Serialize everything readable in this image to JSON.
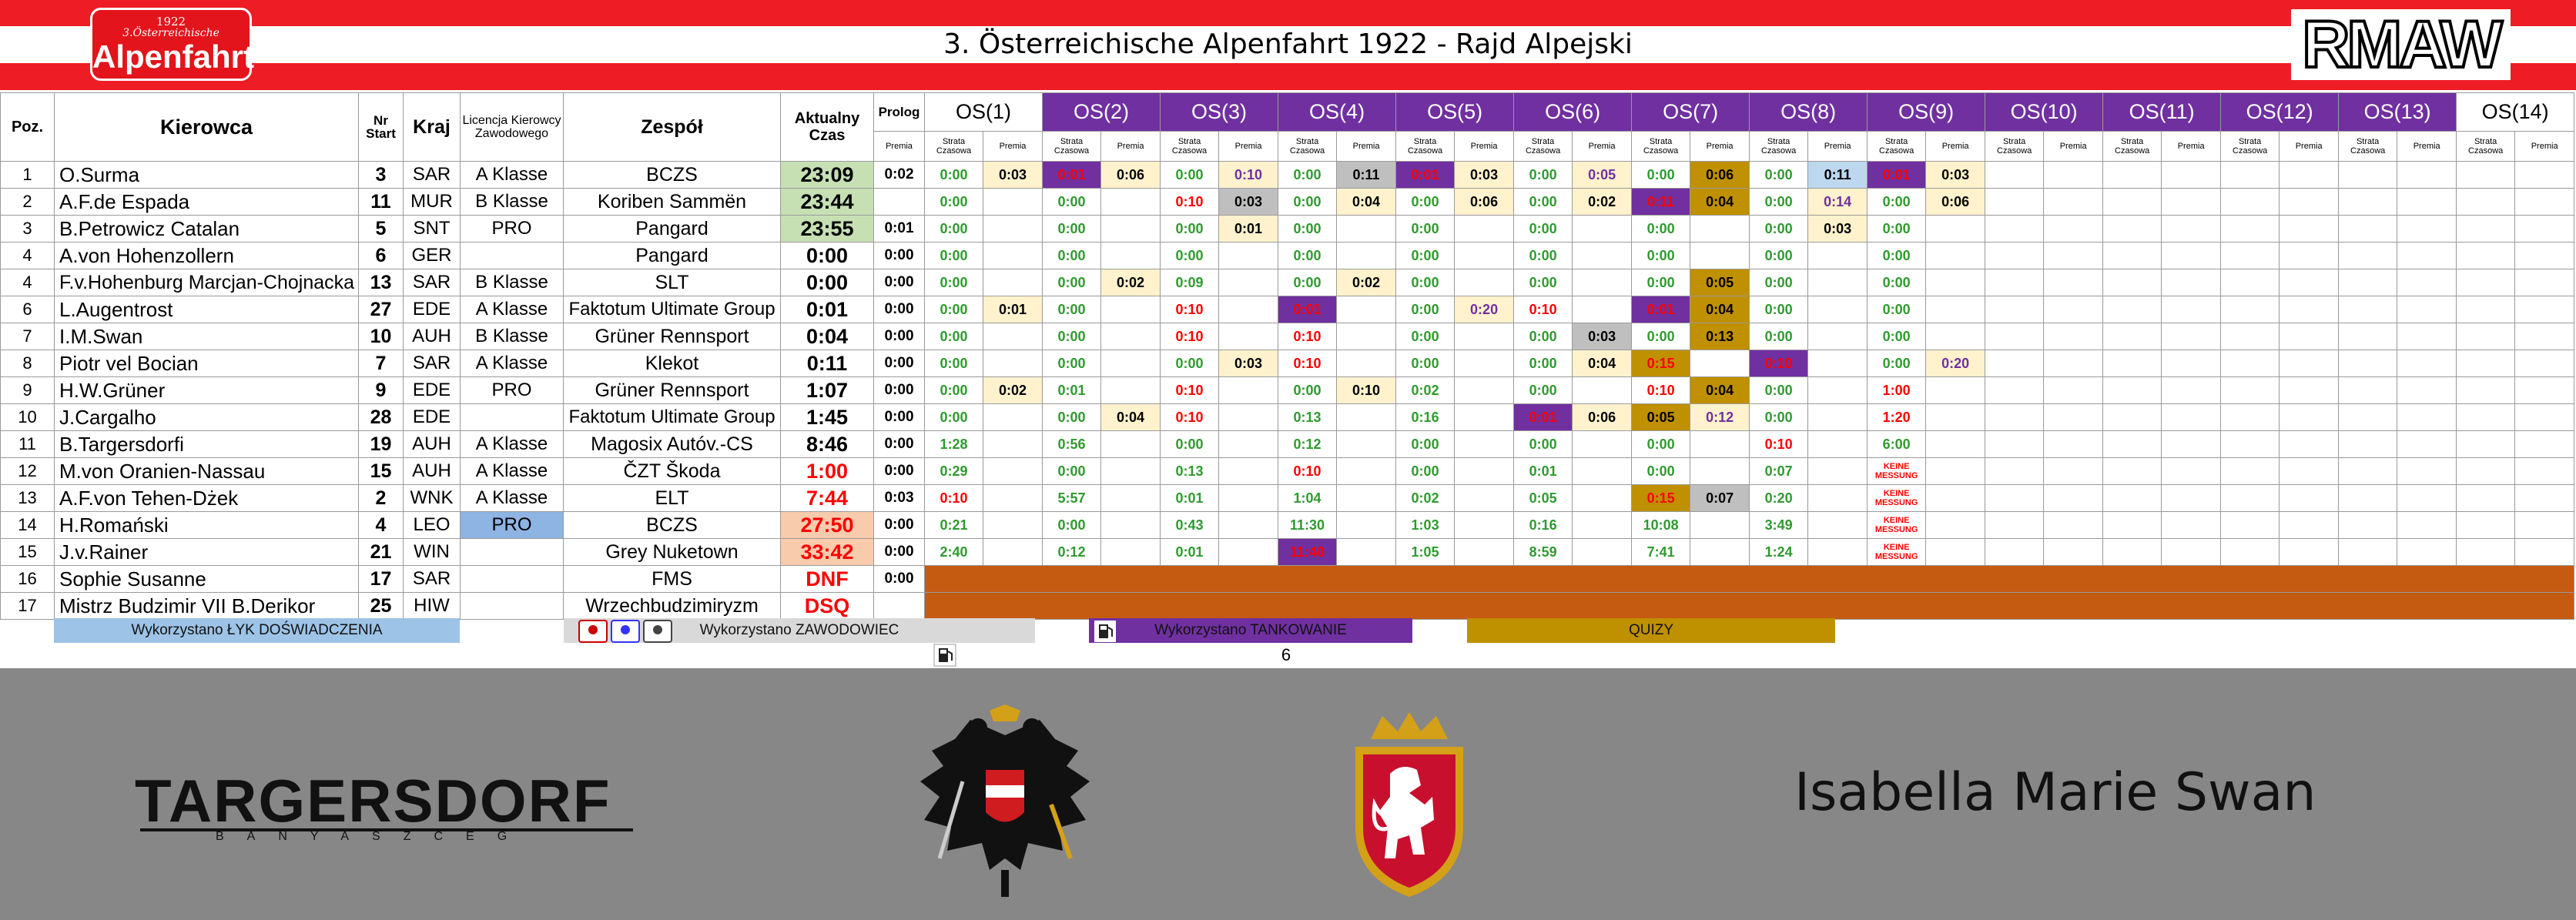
{
  "header": {
    "title": "3. Österreichische Alpenfahrt 1922 - Rajd Alpejski",
    "logo": {
      "year": "1922",
      "subtitle": "3.Österreichische",
      "name": "Alpenfahrt"
    },
    "brand": "RMAW"
  },
  "table": {
    "columns": [
      "Poz.",
      "Kierowca",
      "Nr Start",
      "Kraj",
      "Licencja Kierowcy Zawodowego",
      "Zespół",
      "Aktualny Czas",
      "Prolog"
    ],
    "stage_sub": [
      "Strata Czasowa",
      "Premia"
    ],
    "stages": [
      {
        "name": "OS(1)",
        "fill": "#ffffff",
        "color": "#000000"
      },
      {
        "name": "OS(2)",
        "fill": "#7030a0",
        "color": "#ffffff"
      },
      {
        "name": "OS(3)",
        "fill": "#7030a0",
        "color": "#ffffff"
      },
      {
        "name": "OS(4)",
        "fill": "#7030a0",
        "color": "#ffffff"
      },
      {
        "name": "OS(5)",
        "fill": "#7030a0",
        "color": "#ffffff"
      },
      {
        "name": "OS(6)",
        "fill": "#7030a0",
        "color": "#ffffff"
      },
      {
        "name": "OS(7)",
        "fill": "#7030a0",
        "color": "#ffffff"
      },
      {
        "name": "OS(8)",
        "fill": "#7030a0",
        "color": "#ffffff"
      },
      {
        "name": "OS(9)",
        "fill": "#7030a0",
        "color": "#ffffff"
      },
      {
        "name": "OS(10)",
        "fill": "#7030a0",
        "color": "#ffffff"
      },
      {
        "name": "OS(11)",
        "fill": "#7030a0",
        "color": "#ffffff"
      },
      {
        "name": "OS(12)",
        "fill": "#7030a0",
        "color": "#ffffff"
      },
      {
        "name": "OS(13)",
        "fill": "#7030a0",
        "color": "#ffffff"
      },
      {
        "name": "OS(14)",
        "fill": "#ffffff",
        "color": "#000000"
      }
    ],
    "rows": [
      {
        "pos": "1",
        "driver": "O.Surma",
        "nr": "3",
        "country": "SAR",
        "license": "A Klasse",
        "team": "BCZS",
        "time": {
          "text": "23:09",
          "fill": "#c6e0b4"
        },
        "prolog": "0:02",
        "stages": [
          [
            "0:00",
            "0:03"
          ],
          [
            {
              "text": "0:01",
              "color": "#ff0000",
              "fill": "#7030a0"
            },
            "0:06"
          ],
          [
            "0:00",
            {
              "text": "0:10",
              "color": "#7030a0"
            }
          ],
          [
            "0:00",
            {
              "text": "0:11",
              "fill": "#bfbfbf"
            }
          ],
          [
            {
              "text": "0:01",
              "color": "#ff0000",
              "fill": "#7030a0"
            },
            "0:03"
          ],
          [
            "0:00",
            {
              "text": "0:05",
              "color": "#7030a0"
            }
          ],
          [
            "0:00",
            {
              "text": "0:06",
              "fill": "#bf9000"
            }
          ],
          [
            "0:00",
            {
              "text": "0:11",
              "fill": "#bdd7ee"
            }
          ],
          [
            {
              "text": "0:01",
              "color": "#ff0000",
              "fill": "#7030a0"
            },
            "0:03"
          ]
        ]
      },
      {
        "pos": "2",
        "driver": "A.F.de Espada",
        "nr": "11",
        "country": "MUR",
        "license": "B Klasse",
        "team": "Koriben Sammën",
        "time": {
          "text": "23:44",
          "fill": "#c6e0b4"
        },
        "prolog": null,
        "stages": [
          [
            "0:00",
            null
          ],
          [
            "0:00",
            null
          ],
          [
            {
              "text": "0:10",
              "color": "#ff0000"
            },
            {
              "text": "0:03",
              "fill": "#bfbfbf"
            }
          ],
          [
            "0:00",
            "0:04"
          ],
          [
            "0:00",
            "0:06"
          ],
          [
            "0:00",
            "0:02"
          ],
          [
            {
              "text": "0:11",
              "color": "#ff0000",
              "fill": "#7030a0"
            },
            {
              "text": "0:04",
              "fill": "#bf9000"
            }
          ],
          [
            "0:00",
            {
              "text": "0:14",
              "color": "#7030a0"
            }
          ],
          [
            "0:00",
            "0:06"
          ]
        ]
      },
      {
        "pos": "3",
        "driver": "B.Petrowicz Catalan",
        "nr": "5",
        "country": "SNT",
        "license": "PRO",
        "team": "Pangard",
        "time": {
          "text": "23:55",
          "fill": "#c6e0b4"
        },
        "prolog": "0:01",
        "stages": [
          [
            "0:00",
            null
          ],
          [
            "0:00",
            null
          ],
          [
            "0:00",
            "0:01"
          ],
          [
            "0:00",
            null
          ],
          [
            "0:00",
            null
          ],
          [
            "0:00",
            null
          ],
          [
            "0:00",
            null
          ],
          [
            "0:00",
            "0:03"
          ],
          [
            "0:00",
            null
          ]
        ]
      },
      {
        "pos": "4",
        "driver": "A.von Hohenzollern",
        "nr": "6",
        "country": "GER",
        "license": null,
        "team": "Pangard",
        "time": "0:00",
        "prolog": "0:00",
        "stages": [
          [
            "0:00",
            null
          ],
          [
            "0:00",
            null
          ],
          [
            "0:00",
            null
          ],
          [
            "0:00",
            null
          ],
          [
            "0:00",
            null
          ],
          [
            "0:00",
            null
          ],
          [
            "0:00",
            null
          ],
          [
            "0:00",
            null
          ],
          [
            "0:00",
            null
          ]
        ]
      },
      {
        "pos": "4",
        "driver": "F.v.Hohenburg Marcjan-Chojnacka",
        "nr": "13",
        "country": "SAR",
        "license": "B Klasse",
        "team": "SLT",
        "time": "0:00",
        "prolog": "0:00",
        "stages": [
          [
            "0:00",
            null
          ],
          [
            "0:00",
            "0:02"
          ],
          [
            "0:09",
            null
          ],
          [
            "0:00",
            "0:02"
          ],
          [
            "0:00",
            null
          ],
          [
            "0:00",
            null
          ],
          [
            "0:00",
            {
              "text": "0:05",
              "fill": "#bf9000"
            }
          ],
          [
            "0:00",
            null
          ],
          [
            "0:00",
            null
          ]
        ]
      },
      {
        "pos": "6",
        "driver": "L.Augentrost",
        "nr": "27",
        "country": "EDE",
        "license": "A Klasse",
        "team": "Faktotum Ultimate Group",
        "time": "0:01",
        "prolog": "0:00",
        "stages": [
          [
            "0:00",
            "0:01"
          ],
          [
            "0:00",
            null
          ],
          [
            {
              "text": "0:10",
              "color": "#ff0000"
            },
            null
          ],
          [
            {
              "text": "0:01",
              "color": "#ff0000",
              "fill": "#7030a0"
            },
            null
          ],
          [
            "0:00",
            {
              "text": "0:20",
              "color": "#7030a0"
            }
          ],
          [
            {
              "text": "0:10",
              "color": "#ff0000"
            },
            null
          ],
          [
            {
              "text": "0:01",
              "color": "#ff0000",
              "fill": "#7030a0"
            },
            {
              "text": "0:04",
              "fill": "#bf9000"
            }
          ],
          [
            "0:00",
            null
          ],
          [
            "0:00",
            null
          ]
        ]
      },
      {
        "pos": "7",
        "driver": "I.M.Swan",
        "nr": "10",
        "country": "AUH",
        "license": "B Klasse",
        "team": "Grüner Rennsport",
        "time": "0:04",
        "prolog": "0:00",
        "stages": [
          [
            "0:00",
            null
          ],
          [
            "0:00",
            null
          ],
          [
            {
              "text": "0:10",
              "color": "#ff0000"
            },
            null
          ],
          [
            {
              "text": "0:10",
              "color": "#ff0000"
            },
            null
          ],
          [
            "0:00",
            null
          ],
          [
            "0:00",
            {
              "text": "0:03",
              "fill": "#bfbfbf"
            }
          ],
          [
            "0:00",
            {
              "text": "0:13",
              "fill": "#bf9000"
            }
          ],
          [
            "0:00",
            null
          ],
          [
            "0:00",
            null
          ]
        ]
      },
      {
        "pos": "8",
        "driver": "Piotr vel Bocian",
        "nr": "7",
        "country": "SAR",
        "license": "A Klasse",
        "team": "Klekot",
        "time": "0:11",
        "prolog": "0:00",
        "stages": [
          [
            "0:00",
            null
          ],
          [
            "0:00",
            null
          ],
          [
            "0:00",
            "0:03"
          ],
          [
            {
              "text": "0:10",
              "color": "#ff0000"
            },
            null
          ],
          [
            "0:00",
            null
          ],
          [
            "0:00",
            "0:04"
          ],
          [
            {
              "text": "0:15",
              "color": "#ff0000",
              "fill": "#bf9000"
            },
            null
          ],
          [
            {
              "text": "0:10",
              "color": "#ff0000",
              "fill": "#7030a0"
            },
            null
          ],
          [
            "0:00",
            {
              "text": "0:20",
              "color": "#7030a0"
            }
          ]
        ]
      },
      {
        "pos": "9",
        "driver": "H.W.Grüner",
        "nr": "9",
        "country": "EDE",
        "license": "PRO",
        "team": "Grüner Rennsport",
        "time": "1:07",
        "prolog": "0:00",
        "stages": [
          [
            "0:00",
            "0:02"
          ],
          [
            "0:01",
            null
          ],
          [
            {
              "text": "0:10",
              "color": "#ff0000"
            },
            null
          ],
          [
            "0:00",
            "0:10"
          ],
          [
            "0:02",
            null
          ],
          [
            "0:00",
            null
          ],
          [
            {
              "text": "0:10",
              "color": "#ff0000"
            },
            {
              "text": "0:04",
              "fill": "#bf9000"
            }
          ],
          [
            "0:00",
            null
          ],
          [
            {
              "text": "1:00",
              "color": "#ff0000"
            },
            null
          ]
        ]
      },
      {
        "pos": "10",
        "driver": "J.Cargalho",
        "nr": "28",
        "country": "EDE",
        "license": null,
        "team": "Faktotum Ultimate Group",
        "time": "1:45",
        "prolog": "0:00",
        "stages": [
          [
            "0:00",
            null
          ],
          [
            "0:00",
            "0:04"
          ],
          [
            {
              "text": "0:10",
              "color": "#ff0000"
            },
            null
          ],
          [
            "0:13",
            null
          ],
          [
            "0:16",
            null
          ],
          [
            {
              "text": "0:01",
              "color": "#ff0000",
              "fill": "#7030a0"
            },
            "0:06"
          ],
          [
            {
              "text": "0:05",
              "color": "#000000",
              "fill": "#bf9000"
            },
            {
              "text": "0:12",
              "color": "#7030a0"
            }
          ],
          [
            "0:00",
            null
          ],
          [
            {
              "text": "1:20",
              "color": "#ff0000"
            },
            null
          ]
        ]
      },
      {
        "pos": "11",
        "driver": "B.Targersdorfi",
        "nr": "19",
        "country": "AUH",
        "license": "A Klasse",
        "team": "Magosix Autóv.-CS",
        "time": "8:46",
        "prolog": "0:00",
        "stages": [
          [
            "1:28",
            null
          ],
          [
            "0:56",
            null
          ],
          [
            "0:00",
            null
          ],
          [
            "0:12",
            null
          ],
          [
            "0:00",
            null
          ],
          [
            "0:00",
            null
          ],
          [
            "0:00",
            null
          ],
          [
            {
              "text": "0:10",
              "color": "#ff0000"
            },
            null
          ],
          [
            "6:00",
            null
          ]
        ]
      },
      {
        "pos": "12",
        "driver": "M.von Oranien-Nassau",
        "nr": "15",
        "country": "AUH",
        "license": "A Klasse",
        "team": "ČZT Škoda",
        "time": {
          "text": "1:00",
          "color": "#ff0000"
        },
        "prolog": "0:00",
        "stages": [
          [
            "0:29",
            null
          ],
          [
            "0:00",
            null
          ],
          [
            "0:13",
            null
          ],
          [
            {
              "text": "0:10",
              "color": "#ff0000"
            },
            null
          ],
          [
            "0:00",
            null
          ],
          [
            "0:01",
            null
          ],
          [
            "0:00",
            null
          ],
          [
            "0:07",
            null
          ],
          [
            {
              "text": "KEINE MESSUNG",
              "color": "#ff0000"
            },
            null
          ]
        ]
      },
      {
        "pos": "13",
        "driver": "A.F.von Tehen-Dżek",
        "nr": "2",
        "country": "WNK",
        "license": "A Klasse",
        "team": "ELT",
        "time": {
          "text": "7:44",
          "color": "#ff0000"
        },
        "prolog": "0:03",
        "stages": [
          [
            {
              "text": "0:10",
              "color": "#ff0000"
            },
            null
          ],
          [
            "5:57",
            null
          ],
          [
            "0:01",
            null
          ],
          [
            "1:04",
            null
          ],
          [
            "0:02",
            null
          ],
          [
            "0:05",
            null
          ],
          [
            {
              "text": "0:15",
              "color": "#ff0000",
              "fill": "#bf9000"
            },
            {
              "text": "0:07",
              "fill": "#bfbfbf"
            }
          ],
          [
            "0:20",
            null
          ],
          [
            {
              "text": "KEINE MESSUNG",
              "color": "#ff0000"
            },
            null
          ]
        ]
      },
      {
        "pos": "14",
        "driver": "H.Romański",
        "nr": "4",
        "country": "LEO",
        "license": {
          "text": "PRO",
          "fill": "#8eb4e3"
        },
        "team": "BCZS",
        "time": {
          "text": "27:50",
          "color": "#ff0000",
          "fill": "#f8cbad"
        },
        "prolog": "0:00",
        "stages": [
          [
            "0:21",
            null
          ],
          [
            "0:00",
            null
          ],
          [
            "0:43",
            null
          ],
          [
            "11:30",
            null
          ],
          [
            "1:03",
            null
          ],
          [
            "0:16",
            null
          ],
          [
            "10:08",
            null
          ],
          [
            "3:49",
            null
          ],
          [
            {
              "text": "KEINE MESSUNG",
              "color": "#ff0000"
            },
            null
          ]
        ]
      },
      {
        "pos": "15",
        "driver": "J.v.Rainer",
        "nr": "21",
        "country": "WIN",
        "license": null,
        "team": "Grey Nuketown",
        "time": {
          "text": "33:42",
          "color": "#ff0000",
          "fill": "#f8cbad"
        },
        "prolog": "0:00",
        "stages": [
          [
            "2:40",
            null
          ],
          [
            "0:12",
            null
          ],
          [
            "0:01",
            null
          ],
          [
            {
              "text": "11:40",
              "color": "#ff0000",
              "fill": "#7030a0"
            },
            null
          ],
          [
            "1:05",
            null
          ],
          [
            "8:59",
            null
          ],
          [
            "7:41",
            null
          ],
          [
            "1:24",
            null
          ],
          [
            {
              "text": "KEINE MESSUNG",
              "color": "#ff0000"
            },
            null
          ]
        ]
      },
      {
        "pos": "16",
        "driver": "Sophie Susanne",
        "nr": "17",
        "country": "SAR",
        "license": null,
        "team": "FMS",
        "time": {
          "text": "DNF",
          "color": "#ff0000"
        },
        "prolog": "0:00",
        "stages": null,
        "stages_fill": "#c55a11"
      },
      {
        "pos": "17",
        "driver": "Mistrz Budzimir VII B.Derikor",
        "nr": "25",
        "country": "HIW",
        "license": null,
        "team": "Wrzechbudzimiryzm",
        "time": {
          "text": "DSQ",
          "color": "#ff0000"
        },
        "prolog": null,
        "stages": null,
        "stages_fill": "#c55a11"
      }
    ]
  },
  "legend": [
    {
      "text": "Wykorzystano ŁYK DOŚWIADCZENIA",
      "fill": "#9dc3e6"
    },
    {
      "text": "Wykorzystano ZAWODOWIEC",
      "fill": "#d9d9d9"
    },
    {
      "text": "Wykorzystano TANKOWANIE",
      "fill": "#7030a0"
    },
    {
      "text": "QUIZY",
      "fill": "#bf9000"
    }
  ],
  "page_number": "6",
  "footer": {
    "sponsor": "TARGERSDORF",
    "sponsor_sub": "BANYASZCEG",
    "name": "Isabella Marie Swan"
  }
}
